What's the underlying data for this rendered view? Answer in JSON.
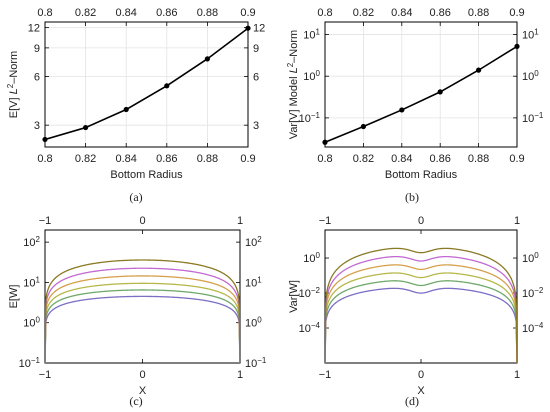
{
  "panels": [
    {
      "id": "a",
      "caption": "(a)",
      "chart_data": {
        "type": "line",
        "xlabel": "Bottom Radius",
        "ylabel": "E[V] L²–Norm",
        "ylabel_parts": [
          "E[V] ",
          "L",
          "2",
          "–Norm"
        ],
        "xlim": [
          0.8,
          0.9
        ],
        "ylim": [
          2.2,
          13.0
        ],
        "yscale": "log",
        "grid": true,
        "x_ticks": [
          0.8,
          0.82,
          0.84,
          0.86,
          0.88,
          0.9
        ],
        "x_tick_labels": [
          "0.8",
          "0.82",
          "0.84",
          "0.86",
          "0.88",
          "0.9"
        ],
        "y_ticks": [
          3,
          6,
          9,
          12
        ],
        "y_tick_labels": [
          "3",
          "6",
          "9",
          "12"
        ],
        "series": [
          {
            "color": "#000000",
            "markers": true,
            "x": [
              0.8,
              0.82,
              0.84,
              0.86,
              0.88,
              0.9
            ],
            "y": [
              2.45,
              2.9,
              3.75,
              5.25,
              7.7,
              11.9
            ]
          }
        ]
      }
    },
    {
      "id": "b",
      "caption": "(b)",
      "chart_data": {
        "type": "line",
        "xlabel": "Bottom Radius",
        "ylabel": "Var[V] Model L²–Norm",
        "ylabel_parts": [
          "Var[V] Model ",
          "L",
          "2",
          "–Norm"
        ],
        "xlim": [
          0.8,
          0.9
        ],
        "ylim": [
          0.02,
          20
        ],
        "yscale": "log",
        "grid": true,
        "x_ticks": [
          0.8,
          0.82,
          0.84,
          0.86,
          0.88,
          0.9
        ],
        "x_tick_labels": [
          "0.8",
          "0.82",
          "0.84",
          "0.86",
          "0.88",
          "0.9"
        ],
        "y_ticks": [
          0.1,
          1,
          10
        ],
        "y_tick_labels": [
          [
            "10",
            "−1"
          ],
          [
            "10",
            "0"
          ],
          [
            "10",
            "1"
          ]
        ],
        "series": [
          {
            "color": "#000000",
            "markers": true,
            "x": [
              0.8,
              0.82,
              0.84,
              0.86,
              0.88,
              0.9
            ],
            "y": [
              0.026,
              0.062,
              0.155,
              0.42,
              1.4,
              5.2
            ]
          }
        ]
      }
    },
    {
      "id": "c",
      "caption": "(c)",
      "chart_data": {
        "type": "line",
        "xlabel": "X",
        "ylabel": "E[W]",
        "xlim": [
          -1,
          1
        ],
        "ylim": [
          0.1,
          200
        ],
        "yscale": "log",
        "grid": false,
        "x_ticks": [
          -1,
          0,
          1
        ],
        "x_tick_labels": [
          "−1",
          "0",
          "1"
        ],
        "y_ticks": [
          0.1,
          1,
          10,
          100
        ],
        "y_tick_labels": [
          [
            "10",
            "−1"
          ],
          [
            "10",
            "0"
          ],
          [
            "10",
            "1"
          ],
          [
            "10",
            "2"
          ]
        ],
        "profile": {
          "shape": "plateau",
          "edge_value": 0.1
        },
        "series": [
          {
            "color": "#7b6fc4",
            "peak": 4.5
          },
          {
            "color": "#6fa86a",
            "peak": 6.5
          },
          {
            "color": "#b7b84a",
            "peak": 9.5
          },
          {
            "color": "#d6a04c",
            "peak": 14.5
          },
          {
            "color": "#c26ad1",
            "peak": 22.5
          },
          {
            "color": "#8a7a25",
            "peak": 36
          }
        ]
      }
    },
    {
      "id": "d",
      "caption": "(d)",
      "chart_data": {
        "type": "line",
        "xlabel": "X",
        "ylabel": "Var[W]",
        "xlim": [
          -1,
          1
        ],
        "ylim": [
          1e-06,
          40
        ],
        "yscale": "log",
        "grid": false,
        "x_ticks": [
          -1,
          0,
          1
        ],
        "x_tick_labels": [
          "−1",
          "0",
          "1"
        ],
        "y_ticks": [
          0.0001,
          0.01,
          1
        ],
        "y_tick_labels": [
          [
            "10",
            "−4"
          ],
          [
            "10",
            "−2"
          ],
          [
            "10",
            "0"
          ]
        ],
        "profile": {
          "shape": "double-hump",
          "edge_value": 1e-06
        },
        "series": [
          {
            "color": "#7b6fc4",
            "peak": 0.022
          },
          {
            "color": "#6fa86a",
            "peak": 0.06
          },
          {
            "color": "#b7b84a",
            "peak": 0.17
          },
          {
            "color": "#d6a04c",
            "peak": 0.5
          },
          {
            "color": "#c26ad1",
            "peak": 1.5
          },
          {
            "color": "#8a7a25",
            "peak": 4.5
          }
        ]
      }
    }
  ]
}
